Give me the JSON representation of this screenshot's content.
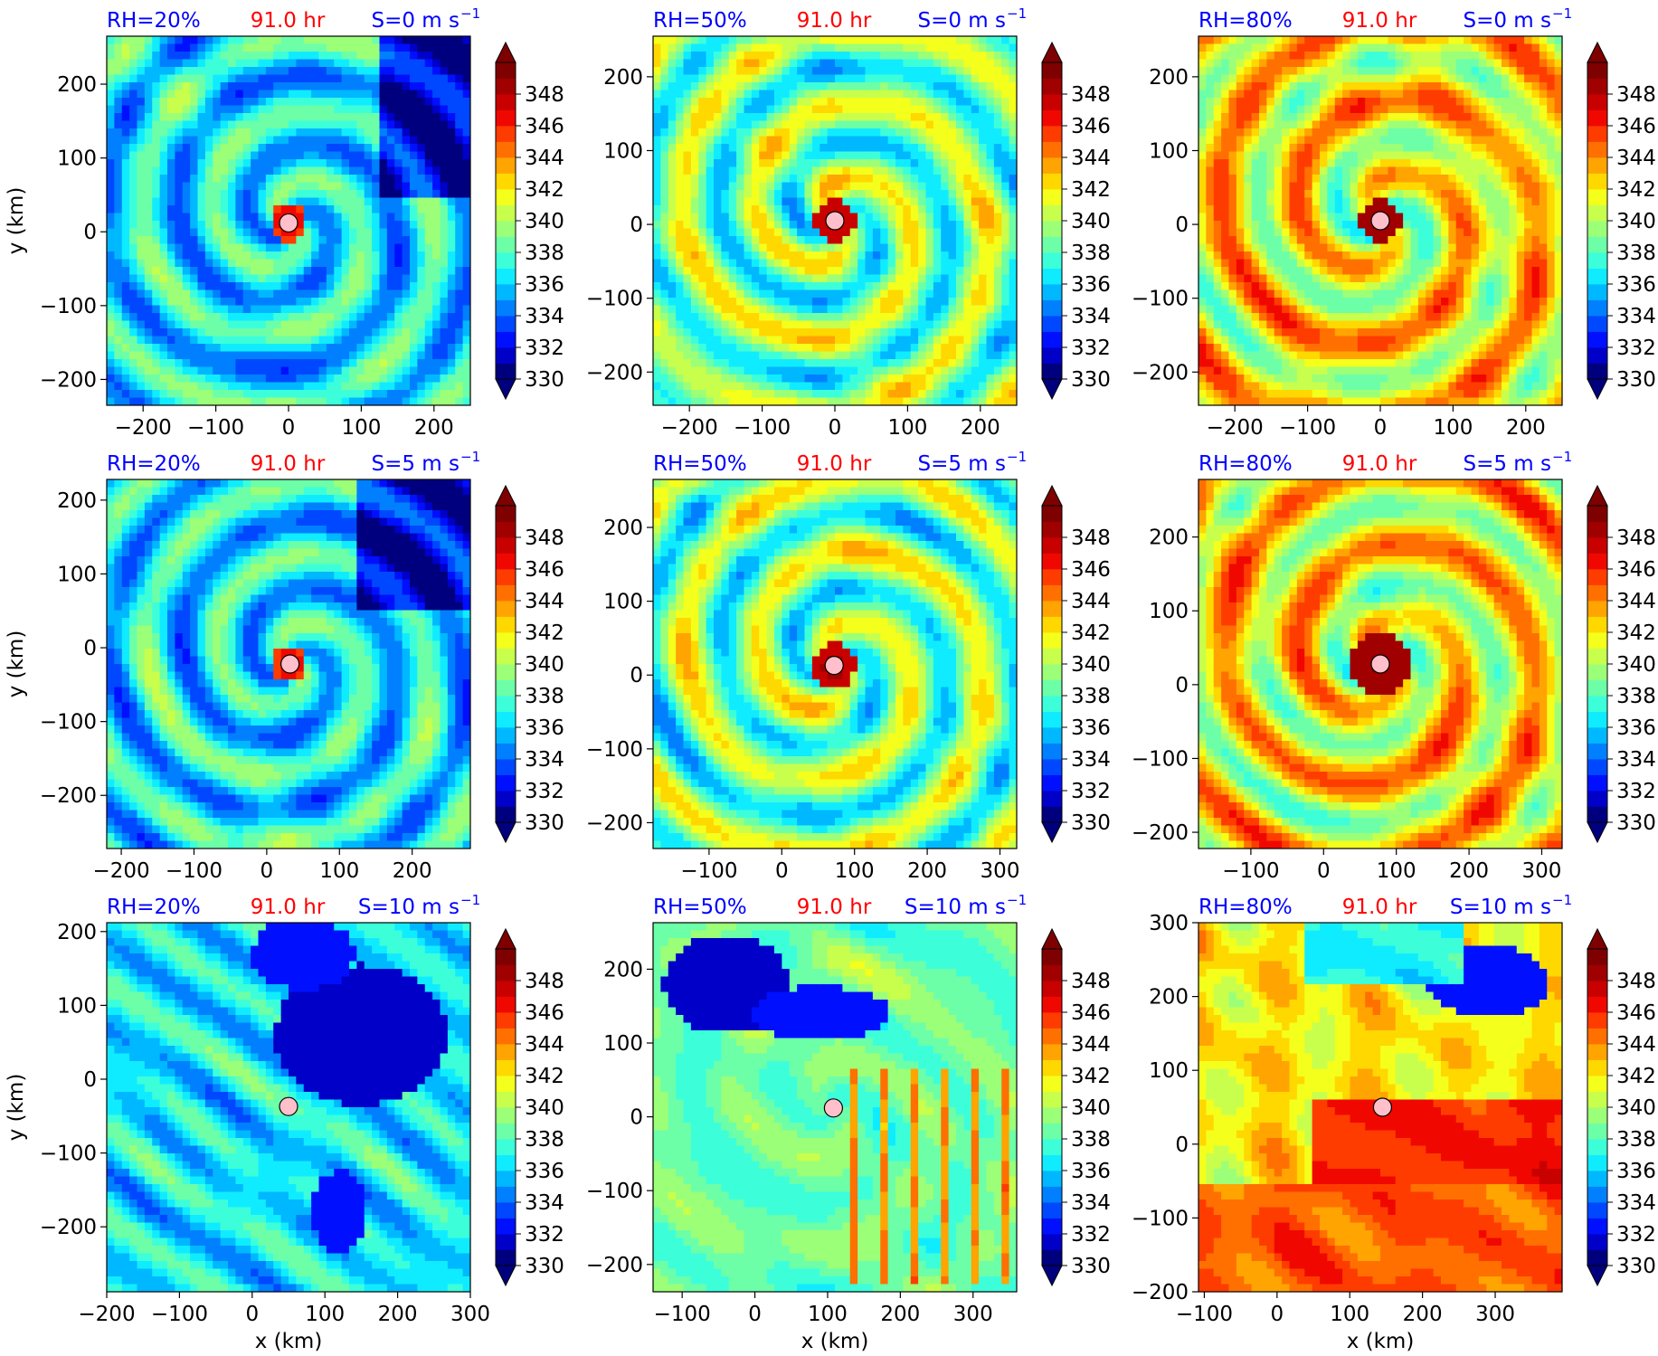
{
  "figure": {
    "colorbar_ticks": [
      "330",
      "332",
      "334",
      "336",
      "338",
      "340",
      "342",
      "344",
      "346",
      "348"
    ],
    "colorbar_range": [
      330,
      350
    ],
    "colorbar_levels": 20,
    "colors": [
      "#00007f",
      "#0000c8",
      "#0010ff",
      "#0048ff",
      "#0080ff",
      "#00b8ff",
      "#10ecff",
      "#3cffda",
      "#6cffa8",
      "#9cff78",
      "#c8ff4c",
      "#f4ff1c",
      "#ffd800",
      "#ffa400",
      "#ff7000",
      "#ff3c00",
      "#f00800",
      "#c80000",
      "#a00000",
      "#7f0000"
    ],
    "center_marker_color": "#ffc0cb",
    "title_rh_color": "#0000ff",
    "title_time_color": "#ff0000",
    "title_shear_color": "#0000ff"
  },
  "chart_data": [
    {
      "type": "heatmap",
      "title_rh": "RH=20%",
      "title_time": "91.0 hr",
      "title_shear": "S=0 m s",
      "shear_exp": "−1",
      "ylabel": "y (km)",
      "xlabel": "",
      "xlim": [
        -250,
        250
      ],
      "ylim": [
        -235,
        265
      ],
      "xticks": [
        -200,
        -100,
        0,
        100,
        200
      ],
      "xtick_labels": [
        "−200",
        "−100",
        "0",
        "100",
        "200"
      ],
      "yticks": [
        -200,
        -100,
        0,
        100,
        200
      ],
      "ytick_labels": [
        "−200",
        "−100",
        "0",
        "100",
        "200"
      ],
      "center": [
        0,
        12
      ],
      "regime": "dry",
      "core_size": 26
    },
    {
      "type": "heatmap",
      "title_rh": "RH=50%",
      "title_time": "91.0 hr",
      "title_shear": "S=0 m s",
      "shear_exp": "−1",
      "ylabel": "",
      "xlabel": "",
      "xlim": [
        -250,
        250
      ],
      "ylim": [
        -245,
        255
      ],
      "xticks": [
        -200,
        -100,
        0,
        100,
        200
      ],
      "xtick_labels": [
        "−200",
        "−100",
        "0",
        "100",
        "200"
      ],
      "yticks": [
        -200,
        -100,
        0,
        100,
        200
      ],
      "ytick_labels": [
        "−200",
        "−100",
        "0",
        "100",
        "200"
      ],
      "center": [
        0,
        5
      ],
      "regime": "mid",
      "core_size": 28
    },
    {
      "type": "heatmap",
      "title_rh": "RH=80%",
      "title_time": "91.0 hr",
      "title_shear": "S=0 m s",
      "shear_exp": "−1",
      "ylabel": "",
      "xlabel": "",
      "xlim": [
        -250,
        250
      ],
      "ylim": [
        -245,
        255
      ],
      "xticks": [
        -200,
        -100,
        0,
        100,
        200
      ],
      "xtick_labels": [
        "−200",
        "−100",
        "0",
        "100",
        "200"
      ],
      "yticks": [
        -200,
        -100,
        0,
        100,
        200
      ],
      "ytick_labels": [
        "−200",
        "−100",
        "0",
        "100",
        "200"
      ],
      "center": [
        0,
        5
      ],
      "regime": "moist",
      "core_size": 30
    },
    {
      "type": "heatmap",
      "title_rh": "RH=20%",
      "title_time": "91.0 hr",
      "title_shear": "S=5 m s",
      "shear_exp": "−1",
      "ylabel": "y (km)",
      "xlabel": "",
      "xlim": [
        -220,
        280
      ],
      "ylim": [
        -272,
        228
      ],
      "xticks": [
        -200,
        -100,
        0,
        100,
        200
      ],
      "xtick_labels": [
        "−200",
        "−100",
        "0",
        "100",
        "200"
      ],
      "yticks": [
        -200,
        -100,
        0,
        100,
        200
      ],
      "ytick_labels": [
        "−200",
        "−100",
        "0",
        "100",
        "200"
      ],
      "center": [
        32,
        -22
      ],
      "regime": "dry",
      "core_size": 24
    },
    {
      "type": "heatmap",
      "title_rh": "RH=50%",
      "title_time": "91.0 hr",
      "title_shear": "S=5 m s",
      "shear_exp": "−1",
      "ylabel": "",
      "xlabel": "",
      "xlim": [
        -177,
        323
      ],
      "ylim": [
        -235,
        265
      ],
      "xticks": [
        -100,
        0,
        100,
        200,
        300
      ],
      "xtick_labels": [
        "−100",
        "0",
        "100",
        "200",
        "300"
      ],
      "yticks": [
        -200,
        -100,
        0,
        100,
        200
      ],
      "ytick_labels": [
        "−200",
        "−100",
        "0",
        "100",
        "200"
      ],
      "center": [
        72,
        13
      ],
      "regime": "mid",
      "core_size": 30
    },
    {
      "type": "heatmap",
      "title_rh": "RH=80%",
      "title_time": "91.0 hr",
      "title_shear": "S=5 m s",
      "shear_exp": "−1",
      "ylabel": "",
      "xlabel": "",
      "xlim": [
        -172,
        328
      ],
      "ylim": [
        -222,
        278
      ],
      "xticks": [
        -100,
        0,
        100,
        200,
        300
      ],
      "xtick_labels": [
        "−100",
        "0",
        "100",
        "200",
        "300"
      ],
      "yticks": [
        -200,
        -100,
        0,
        100,
        200
      ],
      "ytick_labels": [
        "−200",
        "−100",
        "0",
        "100",
        "200"
      ],
      "center": [
        78,
        28
      ],
      "regime": "moist",
      "core_size": 42
    },
    {
      "type": "heatmap",
      "title_rh": "RH=20%",
      "title_time": "91.0 hr",
      "title_shear": "S=10 m s",
      "shear_exp": "−1",
      "ylabel": "y (km)",
      "xlabel": "x (km)",
      "xlim": [
        -200,
        300
      ],
      "ylim": [
        -288,
        212
      ],
      "xticks": [
        -200,
        -100,
        0,
        100,
        200,
        300
      ],
      "xtick_labels": [
        "−200",
        "−100",
        "0",
        "100",
        "200",
        "300"
      ],
      "yticks": [
        -200,
        -100,
        0,
        100,
        200
      ],
      "ytick_labels": [
        "−200",
        "−100",
        "0",
        "100",
        "200"
      ],
      "center": [
        50,
        -37
      ],
      "regime": "dry_shear",
      "core_size": 0
    },
    {
      "type": "heatmap",
      "title_rh": "RH=50%",
      "title_time": "91.0 hr",
      "title_shear": "S=10 m s",
      "shear_exp": "−1",
      "ylabel": "",
      "xlabel": "x (km)",
      "xlim": [
        -140,
        360
      ],
      "ylim": [
        -237,
        263
      ],
      "xticks": [
        -100,
        0,
        100,
        200,
        300
      ],
      "xtick_labels": [
        "−100",
        "0",
        "100",
        "200",
        "300"
      ],
      "yticks": [
        -200,
        -100,
        0,
        100,
        200
      ],
      "ytick_labels": [
        "−200",
        "−100",
        "0",
        "100",
        "200"
      ],
      "center": [
        108,
        12
      ],
      "regime": "mid_shear",
      "core_size": 0
    },
    {
      "type": "heatmap",
      "title_rh": "RH=80%",
      "title_time": "91.0 hr",
      "title_shear": "S=10 m s",
      "shear_exp": "−1",
      "ylabel": "",
      "xlabel": "x (km)",
      "xlim": [
        -108,
        392
      ],
      "ylim": [
        -200,
        300
      ],
      "xticks": [
        -100,
        0,
        100,
        200,
        300
      ],
      "xtick_labels": [
        "−100",
        "0",
        "100",
        "200",
        "300"
      ],
      "yticks": [
        -200,
        -100,
        0,
        100,
        200,
        300
      ],
      "ytick_labels": [
        "−200",
        "−100",
        "0",
        "100",
        "200",
        "300"
      ],
      "center": [
        145,
        50
      ],
      "regime": "moist_shear",
      "core_size": 0
    }
  ]
}
